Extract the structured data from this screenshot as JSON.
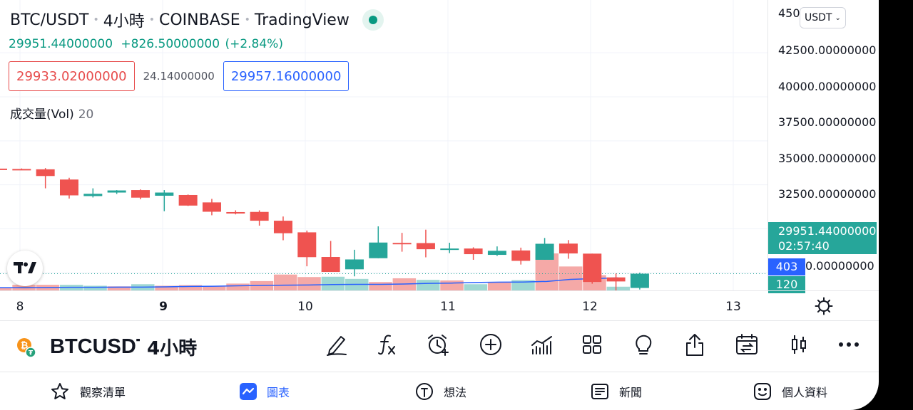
{
  "legend": {
    "symbol": "BTC/USDT",
    "interval": "4小時",
    "exchange": "COINBASE",
    "source": "TradingView",
    "last_price": "29951.44000000",
    "change": "+826.50000000",
    "change_pct": "(+2.84%)"
  },
  "quote": {
    "sell": "29933.02000000",
    "spread": "24.14000000",
    "buy": "29957.16000000"
  },
  "volume_indicator": {
    "name": "成交量(Vol)",
    "length": "20"
  },
  "price_scale": {
    "currency_button": "USDT",
    "labels": [
      "450",
      "42500.00000000",
      "40000.00000000",
      "37500.00000000",
      "35000.00000000",
      "32500.00000000",
      "0.00000000"
    ],
    "last_price_label": "29951.44000000",
    "countdown": "02:57:40",
    "volume_ma_label": "403",
    "volume_label": "120"
  },
  "time_axis": {
    "labels": [
      "8",
      "9",
      "10",
      "11",
      "12",
      "13"
    ]
  },
  "toolbar": {
    "symbol": "BTCUSDT",
    "interval": "4小時",
    "tools": [
      "draw-icon",
      "indicator-fx-icon",
      "alert-icon",
      "add-icon",
      "bar-chart-icon",
      "layout-grid-icon",
      "ideas-bulb-icon",
      "share-icon",
      "replay-icon",
      "candle-style-icon",
      "more-icon"
    ]
  },
  "nav": {
    "items": [
      "觀察清單",
      "圖表",
      "想法",
      "新聞",
      "個人資料"
    ],
    "active": 1
  },
  "colors": {
    "up": "#26a69a",
    "down": "#ef5350",
    "up_volume": "#9fd8d2",
    "down_volume": "#f5a9a7",
    "volume_ma": "#2962ff",
    "accent": "#2962ff"
  },
  "chart_data": {
    "type": "candlestick",
    "price_axis": {
      "min": 29000,
      "max": 45500
    },
    "candles": [
      {
        "o": 35920,
        "h": 35950,
        "l": 35880,
        "c": 35900
      },
      {
        "o": 35900,
        "h": 35930,
        "l": 35870,
        "c": 35880
      },
      {
        "o": 35880,
        "h": 35950,
        "l": 34800,
        "c": 35500
      },
      {
        "o": 35300,
        "h": 35400,
        "l": 34220,
        "c": 34400
      },
      {
        "o": 34360,
        "h": 34800,
        "l": 34280,
        "c": 34490
      },
      {
        "o": 34560,
        "h": 34700,
        "l": 34480,
        "c": 34680
      },
      {
        "o": 34700,
        "h": 34740,
        "l": 34180,
        "c": 34270
      },
      {
        "o": 34380,
        "h": 34700,
        "l": 33500,
        "c": 34560
      },
      {
        "o": 34420,
        "h": 34450,
        "l": 33800,
        "c": 33820
      },
      {
        "o": 34000,
        "h": 34200,
        "l": 33270,
        "c": 33470
      },
      {
        "o": 33450,
        "h": 33550,
        "l": 33320,
        "c": 33400
      },
      {
        "o": 33460,
        "h": 33550,
        "l": 32680,
        "c": 32960
      },
      {
        "o": 32960,
        "h": 33200,
        "l": 31850,
        "c": 32250
      },
      {
        "o": 32300,
        "h": 32400,
        "l": 30370,
        "c": 30890
      },
      {
        "o": 30900,
        "h": 31810,
        "l": 30080,
        "c": 30050
      },
      {
        "o": 30200,
        "h": 31310,
        "l": 29800,
        "c": 30760
      },
      {
        "o": 30830,
        "h": 32640,
        "l": 30830,
        "c": 31720
      },
      {
        "o": 31700,
        "h": 32270,
        "l": 31200,
        "c": 31640
      },
      {
        "o": 31690,
        "h": 32450,
        "l": 30880,
        "c": 31340
      },
      {
        "o": 31340,
        "h": 31710,
        "l": 31120,
        "c": 31380
      },
      {
        "o": 31380,
        "h": 31450,
        "l": 30740,
        "c": 31060
      },
      {
        "o": 31020,
        "h": 31500,
        "l": 30960,
        "c": 31250
      },
      {
        "o": 31270,
        "h": 31430,
        "l": 30470,
        "c": 30680
      },
      {
        "o": 30740,
        "h": 31980,
        "l": 30740,
        "c": 31650
      },
      {
        "o": 31660,
        "h": 31860,
        "l": 30800,
        "c": 31100
      },
      {
        "o": 31090,
        "h": 31090,
        "l": 29380,
        "c": 29480
      },
      {
        "o": 29740,
        "h": 29960,
        "l": 28550,
        "c": 29510
      },
      {
        "o": 29140,
        "h": 30010,
        "l": 29050,
        "c": 29951
      }
    ],
    "volume": {
      "values": [
        90,
        180,
        180,
        180,
        150,
        130,
        200,
        150,
        170,
        140,
        220,
        300,
        510,
        430,
        440,
        370,
        270,
        390,
        340,
        320,
        200,
        270,
        330,
        1190,
        770,
        490,
        120
      ],
      "up": [
        false,
        false,
        false,
        true,
        true,
        false,
        true,
        false,
        false,
        false,
        false,
        false,
        false,
        false,
        true,
        true,
        false,
        false,
        true,
        false,
        true,
        false,
        true,
        false,
        false,
        false,
        true
      ]
    },
    "volume_ma": [
      90,
      90,
      95,
      100,
      100,
      105,
      105,
      115,
      130,
      135,
      150,
      160,
      170,
      175,
      190,
      195,
      195,
      205,
      225,
      235,
      255,
      265,
      270,
      290,
      355,
      380,
      403
    ]
  }
}
